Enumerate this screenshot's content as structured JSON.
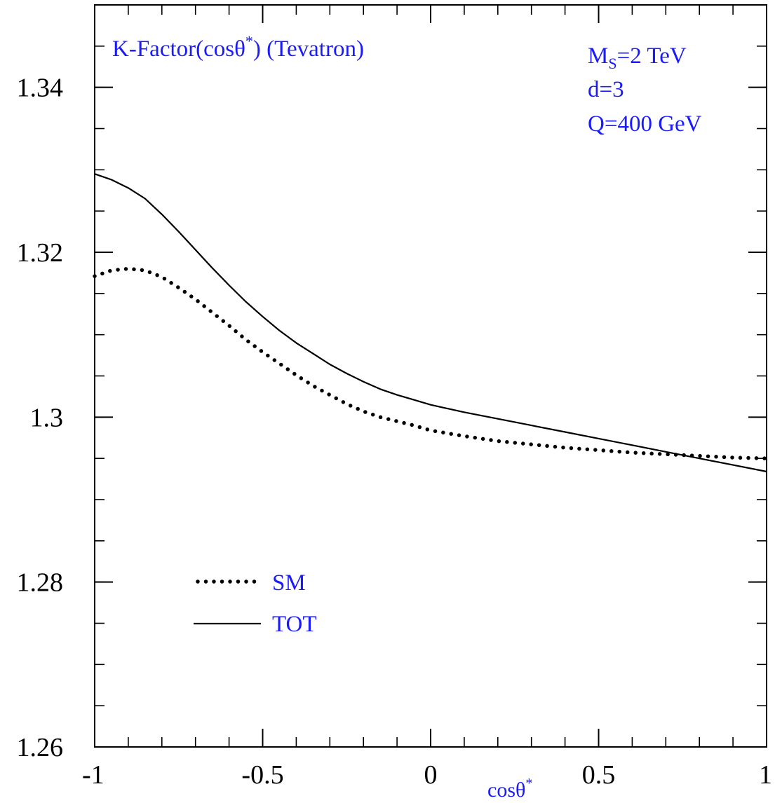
{
  "colors": {
    "frame": "#000000",
    "annotation": "#1a1aff",
    "series": "#000000"
  },
  "chart_data": {
    "type": "line",
    "title": "K-Factor(cosθ*) (Tevatron)",
    "title_base": "K-Factor(cosθ",
    "title_sup": "*",
    "title_tail": ") (Tevatron)",
    "annotations": {
      "ms_main": "M",
      "ms_sub": "S",
      "ms_tail": "=2 TeV",
      "d": "d=3",
      "q": "Q=400 GeV"
    },
    "xlabel": "cosθ*",
    "xlabel_base": "cosθ",
    "xlabel_sup": "*",
    "ylabel": "",
    "xlim": [
      -1,
      1
    ],
    "ylim": [
      1.26,
      1.35
    ],
    "x_ticks": [
      -1,
      -0.5,
      0,
      0.5,
      1
    ],
    "x_tick_labels": [
      "-1",
      "-0.5",
      "0",
      "0.5",
      "1"
    ],
    "y_ticks": [
      1.26,
      1.28,
      1.3,
      1.32,
      1.34
    ],
    "y_tick_labels": [
      "1.26",
      "1.28",
      "1.3",
      "1.32",
      "1.34"
    ],
    "x_minor_step": 0.1,
    "y_minor_step": 0.005,
    "grid": false,
    "legend_position": "bottom-left",
    "series": [
      {
        "name": "SM",
        "style": "dotted",
        "x": [
          -1.0,
          -0.95,
          -0.9,
          -0.85,
          -0.8,
          -0.75,
          -0.7,
          -0.65,
          -0.6,
          -0.55,
          -0.5,
          -0.45,
          -0.4,
          -0.35,
          -0.3,
          -0.25,
          -0.2,
          -0.15,
          -0.1,
          -0.05,
          0.0,
          0.1,
          0.2,
          0.3,
          0.4,
          0.5,
          0.6,
          0.7,
          0.8,
          0.9,
          1.0
        ],
        "y": [
          1.3171,
          1.3178,
          1.318,
          1.3178,
          1.317,
          1.3157,
          1.3143,
          1.3127,
          1.3111,
          1.3094,
          1.3079,
          1.3065,
          1.3051,
          1.3038,
          1.3027,
          1.3016,
          1.3007,
          1.3,
          1.2995,
          1.299,
          1.2984,
          1.2977,
          1.2971,
          1.2967,
          1.2963,
          1.296,
          1.2957,
          1.2955,
          1.2953,
          1.2951,
          1.295
        ]
      },
      {
        "name": "TOT",
        "style": "solid",
        "x": [
          -1.0,
          -0.95,
          -0.9,
          -0.85,
          -0.8,
          -0.75,
          -0.7,
          -0.65,
          -0.6,
          -0.55,
          -0.5,
          -0.45,
          -0.4,
          -0.35,
          -0.3,
          -0.25,
          -0.2,
          -0.15,
          -0.1,
          -0.05,
          0.0,
          0.1,
          0.2,
          0.3,
          0.4,
          0.5,
          0.6,
          0.7,
          0.8,
          0.9,
          1.0
        ],
        "y": [
          1.3295,
          1.3288,
          1.3278,
          1.3265,
          1.3246,
          1.3225,
          1.3203,
          1.3181,
          1.316,
          1.314,
          1.3122,
          1.3105,
          1.309,
          1.3077,
          1.3064,
          1.3053,
          1.3043,
          1.3034,
          1.3027,
          1.3021,
          1.3015,
          1.3006,
          1.2998,
          1.299,
          1.2982,
          1.2974,
          1.2966,
          1.2958,
          1.295,
          1.2942,
          1.2934
        ]
      }
    ],
    "legend": [
      {
        "label": "SM",
        "style": "dotted"
      },
      {
        "label": "TOT",
        "style": "solid"
      }
    ]
  }
}
